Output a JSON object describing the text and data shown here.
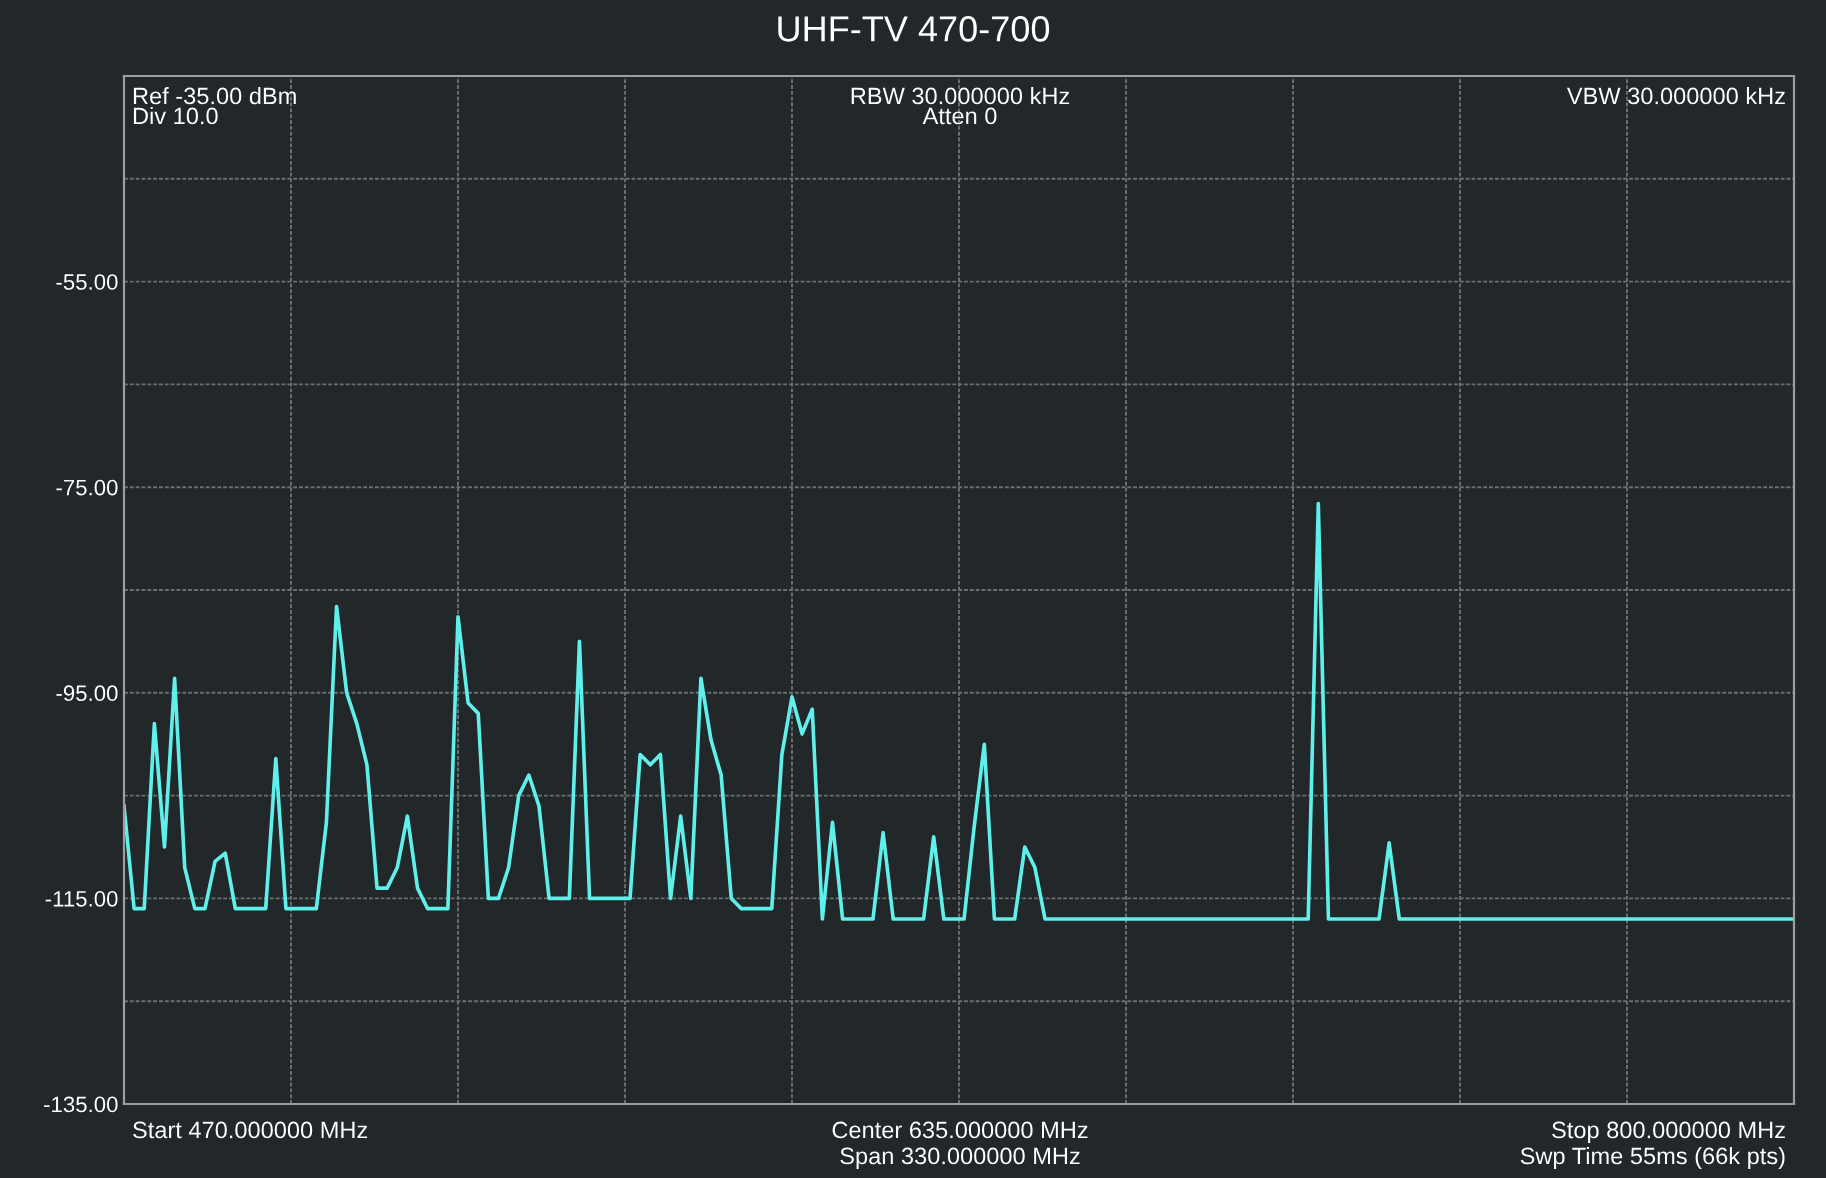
{
  "chart_data": {
    "type": "line",
    "title": "UHF-TV 470-700",
    "annotations": [
      "Ref -35.00 dBm",
      "Div 10.0",
      "RBW 30.000000 kHz",
      "Atten 0",
      "VBW 30.000000 kHz",
      "Start 470.000000 MHz",
      "Center 635.000000 MHz",
      "Span 330.000000 MHz",
      "Stop 800.000000 MHz",
      "Swp Time 55ms (66k pts)"
    ],
    "categories": [
      null,
      null,
      null,
      null,
      null,
      null,
      null,
      null,
      null,
      null,
      null,
      null,
      null,
      null,
      null,
      null,
      null,
      null,
      null,
      null,
      null,
      null,
      null,
      null,
      null,
      null,
      null,
      null,
      null,
      null,
      null,
      null,
      null,
      null,
      null,
      null,
      null,
      null,
      null,
      null,
      null,
      null,
      null,
      null,
      null,
      null,
      null,
      null,
      null,
      null,
      null,
      null,
      null,
      null,
      null,
      null,
      null,
      null,
      null,
      null,
      null,
      null,
      null,
      null,
      null,
      null,
      null,
      null,
      null,
      null,
      null,
      null,
      null,
      null,
      null,
      null,
      null,
      null,
      null,
      null,
      null,
      null,
      null,
      null,
      null,
      null,
      null,
      null,
      null,
      null,
      null,
      null,
      null,
      null,
      null,
      null,
      null,
      null,
      null,
      null,
      null,
      null,
      null,
      null,
      null,
      null,
      null,
      null,
      null,
      null,
      null,
      null,
      null,
      null,
      null,
      null,
      null,
      null,
      null,
      null,
      null,
      null,
      null,
      null,
      null,
      null,
      null,
      null,
      null,
      null,
      null,
      null,
      null,
      null,
      null,
      null,
      null,
      null,
      null,
      null,
      null,
      null,
      null,
      null,
      null,
      null,
      null,
      null,
      null,
      null,
      null,
      null,
      null,
      null,
      null,
      null,
      null,
      null,
      null,
      null,
      null,
      null,
      null,
      null,
      null,
      null
    ],
    "series": [
      {
        "color": "#5ff0ec",
        "values": [
          -106,
          -116,
          -116,
          -98,
          -110,
          -93.6,
          -112,
          -116,
          -116,
          -111.4,
          -110.6,
          -116,
          -116,
          -116,
          -116,
          -101.4,
          -116,
          -116,
          -116,
          -116,
          -107.6,
          -86.6,
          -95,
          -98,
          -102,
          -114,
          -114,
          -112,
          -107,
          -114,
          -116,
          -116,
          -116,
          -87.6,
          -96,
          -97,
          -115,
          -115,
          -112,
          -105,
          -103,
          -106,
          -115,
          -115,
          -115,
          -90,
          -115,
          -115,
          -115,
          -115,
          -115,
          -101,
          -102,
          -101,
          -115,
          -107,
          -115,
          -93.6,
          -99.6,
          -103,
          -115,
          -116,
          -116,
          -116,
          -116,
          -101,
          -95.4,
          -99,
          -96.6,
          -117,
          -107.6,
          -117,
          -117,
          -117,
          -117,
          -108.6,
          -117,
          -117,
          -117,
          -117,
          -109,
          -117,
          -117,
          -117,
          -108,
          -100,
          -117,
          -117,
          -117,
          -110,
          -112,
          -117,
          -117,
          -117,
          -117,
          -117,
          -117,
          -117,
          -117,
          -117,
          -117,
          -117,
          -117,
          -117,
          -117,
          -117,
          -117,
          -117,
          -117,
          -117,
          -117,
          -117,
          -117,
          -117,
          -117,
          -117,
          -117,
          -117,
          -76.6,
          -117,
          -117,
          -117,
          -117,
          -117,
          -117,
          -109.6,
          -117,
          -117,
          -117,
          -117,
          -117,
          -117,
          -117,
          -117,
          -117,
          -117,
          -117,
          -117,
          -117,
          -117,
          -117,
          -117,
          -117,
          -117,
          -117,
          -117,
          -117,
          -117,
          -117,
          -117,
          -117,
          -117,
          -117,
          -117,
          -117,
          -117,
          -117,
          -117,
          -117,
          -117,
          -117,
          -117,
          -117,
          -117,
          -117,
          -117
        ]
      }
    ],
    "ylim": [
      -135,
      -35
    ],
    "yticks": [
      {
        "value": -135,
        "label": "-135.00"
      },
      {
        "value": -125,
        "label": null
      },
      {
        "value": -115,
        "label": "-115.00"
      },
      {
        "value": -105,
        "label": null
      },
      {
        "value": -95,
        "label": "-95.00"
      },
      {
        "value": -85,
        "label": null
      },
      {
        "value": -75,
        "label": "-75.00"
      },
      {
        "value": -65,
        "label": null
      },
      {
        "value": -55,
        "label": "-55.00"
      },
      {
        "value": -45,
        "label": null
      },
      {
        "value": -35,
        "label": null
      }
    ],
    "tick_labels": "y",
    "grid": true,
    "marker": "none",
    "line_style": "solid"
  }
}
